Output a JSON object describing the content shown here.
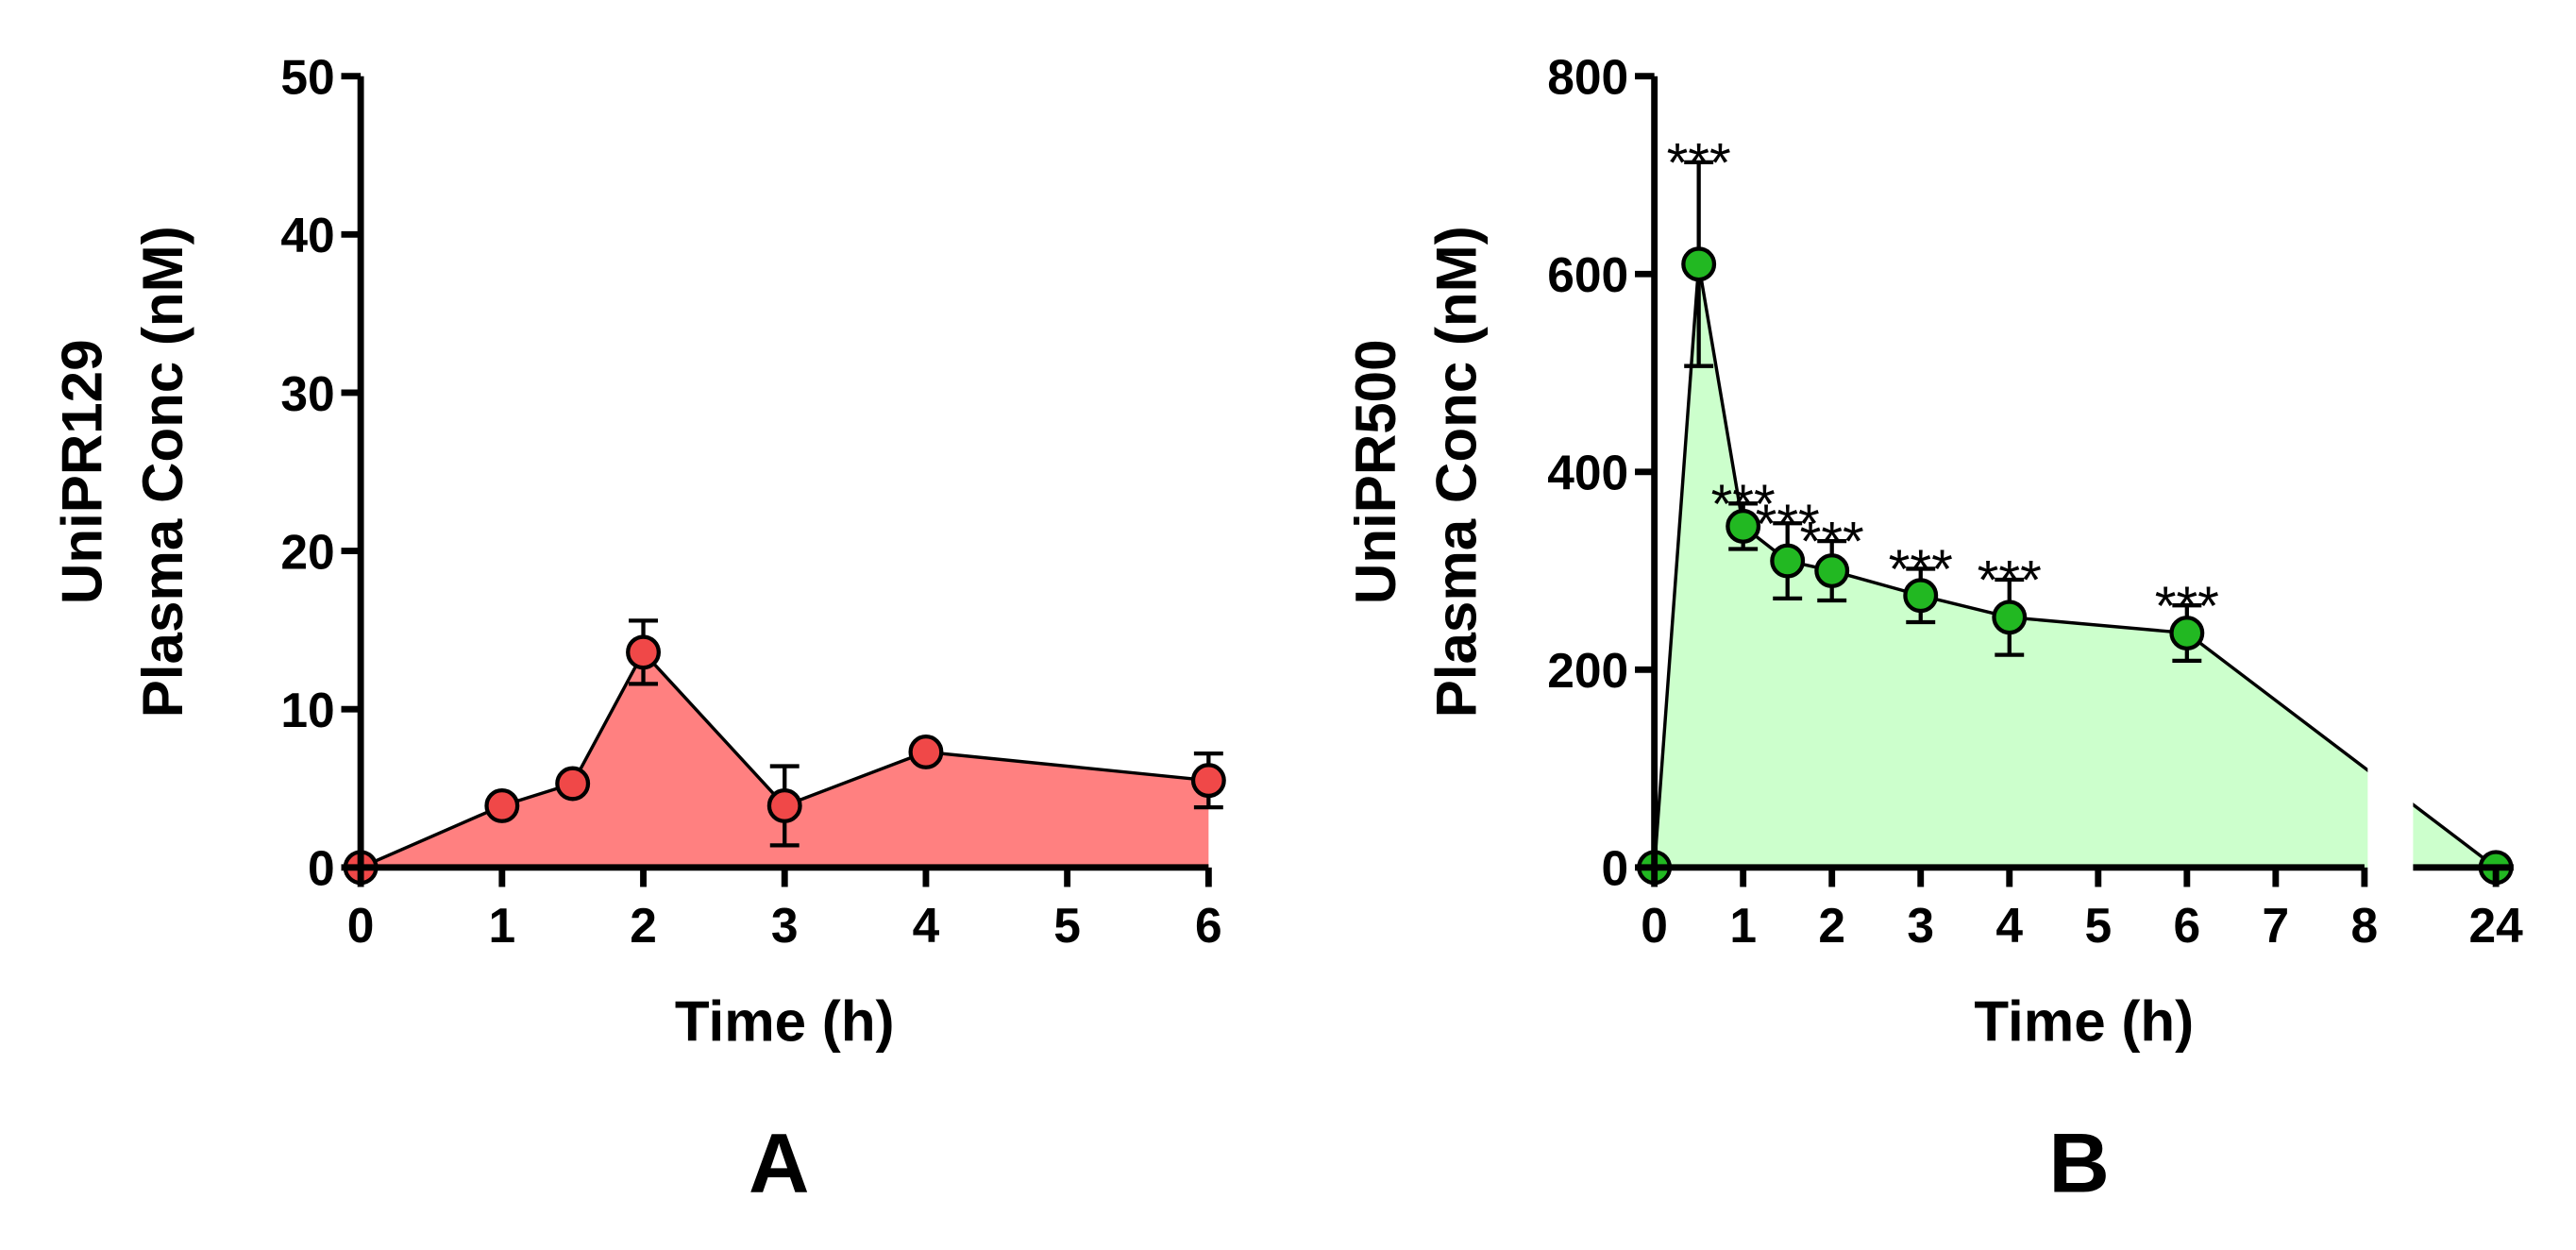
{
  "chart_data": [
    {
      "type": "line",
      "panel": "A",
      "ylabel": [
        "UniPR129",
        "Plasma Conc (nM)"
      ],
      "xlabel": "Time (h)",
      "x": [
        0,
        1,
        1.5,
        2,
        3,
        4,
        6
      ],
      "series": [
        {
          "name": "UniPR129",
          "color": "#f04848",
          "fill": "#ff8080",
          "values": [
            0,
            3.9,
            5.3,
            13.6,
            3.9,
            7.3,
            5.5
          ],
          "errors": [
            null,
            null,
            null,
            2.0,
            2.5,
            null,
            1.7
          ]
        }
      ],
      "xlim": [
        0,
        6
      ],
      "xticks": [
        0,
        1,
        2,
        3,
        4,
        5,
        6
      ],
      "ylim": [
        0,
        50
      ],
      "yticks": [
        0,
        10,
        20,
        30,
        40,
        50
      ]
    },
    {
      "type": "line",
      "panel": "B",
      "ylabel": [
        "UniPR500",
        "Plasma Conc (nM)"
      ],
      "xlabel": "Time (h)",
      "x": [
        0,
        0.5,
        1,
        1.5,
        2,
        3,
        4,
        6,
        24
      ],
      "series": [
        {
          "name": "UniPR500",
          "color": "#22b822",
          "fill": "#ccffcc",
          "values": [
            0,
            610,
            345,
            310,
            300,
            275,
            253,
            237,
            0
          ],
          "errors": [
            null,
            103,
            23,
            38,
            30,
            27,
            38,
            28,
            null
          ],
          "annotations": [
            null,
            "***",
            "***",
            "***",
            "***",
            "***",
            "***",
            "***",
            null
          ]
        }
      ],
      "x_segments": [
        {
          "xlim": [
            0,
            8
          ],
          "xticks": [
            0,
            1,
            2,
            3,
            4,
            5,
            6,
            7,
            8
          ]
        },
        {
          "xlim": [
            23.1,
            24.2
          ],
          "xticks": [
            24
          ]
        }
      ],
      "ylim": [
        0,
        800
      ],
      "yticks": [
        0,
        200,
        400,
        600,
        800
      ]
    }
  ]
}
